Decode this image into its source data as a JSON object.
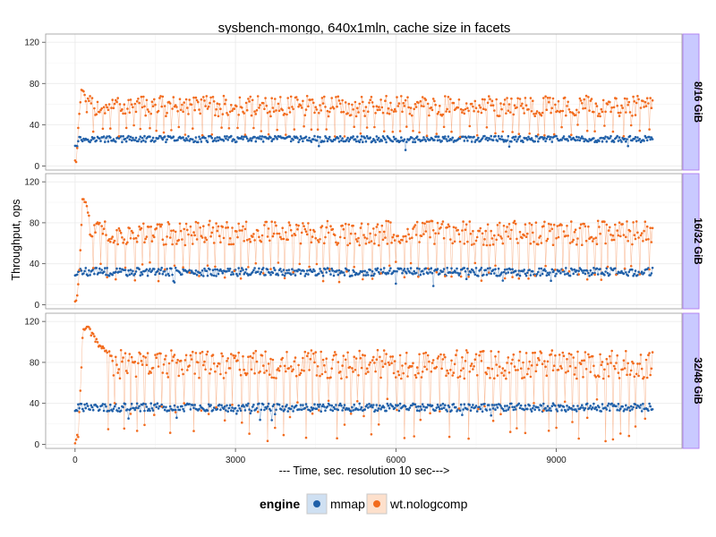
{
  "chart_data": {
    "type": "scatter",
    "title": "sysbench-mongo, 640x1mln, cache size in facets",
    "xlabel": "--- Time, sec. resolution 10 sec--->",
    "ylabel": "Throughput, ops",
    "xlim": [
      -550,
      11350
    ],
    "ylim": [
      -4,
      128
    ],
    "x_ticks": [
      0,
      3000,
      6000,
      9000
    ],
    "y_ticks": [
      0,
      40,
      80,
      120
    ],
    "grid": true,
    "lines_connect_points": true,
    "sample_interval_sec": 10,
    "time_range": [
      0,
      10800
    ],
    "legend": {
      "title": "engine",
      "position": "bottom",
      "entries": [
        "mmap",
        "wt.nologcomp"
      ]
    },
    "colors": {
      "mmap": "#1f5fa8",
      "wt.nologcomp": "#f26b1d",
      "strip": "#c9c9ff",
      "strip_border": "#b07cf0",
      "panel_border": "#9a9a9a",
      "gridline": "#ececec"
    },
    "facets": [
      {
        "label": "8/16 GiB",
        "series": [
          {
            "name": "mmap",
            "mean": 26,
            "spread": 3,
            "start_value": 20
          },
          {
            "name": "wt.nologcomp",
            "ramp": [
              [
                0,
                4
              ],
              [
                30,
                8
              ],
              [
                70,
                45
              ],
              [
                110,
                70
              ],
              [
                150,
                75
              ],
              [
                200,
                60
              ]
            ],
            "high_level": 58,
            "high_spread": 10,
            "dip_min": 28,
            "dip_max": 40,
            "dip_every_sec": 140
          }
        ]
      },
      {
        "label": "16/32 GiB",
        "series": [
          {
            "name": "mmap",
            "mean": 32,
            "spread": 4,
            "start_value": 29
          },
          {
            "name": "wt.nologcomp",
            "ramp": [
              [
                0,
                3
              ],
              [
                40,
                8
              ],
              [
                90,
                40
              ],
              [
                140,
                105
              ],
              [
                200,
                102
              ],
              [
                260,
                85
              ]
            ],
            "high_level": 70,
            "high_spread": 12,
            "dip_min": 22,
            "dip_max": 42,
            "dip_every_sec": 140
          }
        ]
      },
      {
        "label": "32/48 GiB",
        "series": [
          {
            "name": "mmap",
            "mean": 36,
            "spread": 4,
            "start_value": 33
          },
          {
            "name": "wt.nologcomp",
            "ramp": [
              [
                0,
                2
              ],
              [
                60,
                10
              ],
              [
                110,
                60
              ],
              [
                150,
                115
              ],
              [
                260,
                112
              ],
              [
                400,
                100
              ],
              [
                600,
                88
              ]
            ],
            "high_level": 78,
            "high_spread": 14,
            "dip_min": 3,
            "dip_max": 45,
            "dip_every_sec": 140
          }
        ]
      }
    ]
  }
}
